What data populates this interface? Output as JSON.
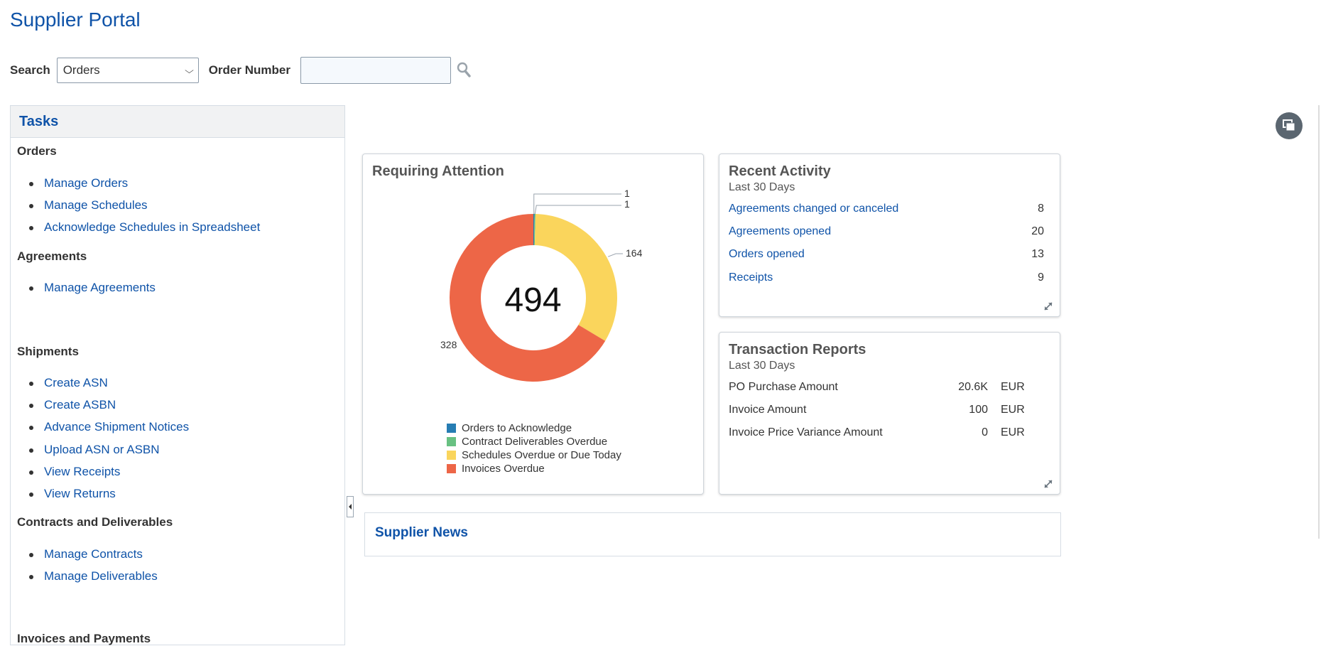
{
  "page": {
    "title": "Supplier Portal"
  },
  "search": {
    "label": "Search",
    "selected": "Orders",
    "order_label": "Order Number",
    "order_value": "",
    "order_placeholder": ""
  },
  "tasks": {
    "title": "Tasks",
    "sections": {
      "orders": {
        "title": "Orders",
        "items": [
          "Manage Orders",
          "Manage Schedules",
          "Acknowledge Schedules in Spreadsheet"
        ]
      },
      "agreements": {
        "title": "Agreements",
        "items": [
          "Manage Agreements"
        ]
      },
      "shipments": {
        "title": "Shipments",
        "items": [
          "Create ASN",
          "Create ASBN",
          "Advance Shipment Notices",
          "Upload ASN or ASBN",
          "View Receipts",
          "View Returns"
        ]
      },
      "contracts": {
        "title": "Contracts and Deliverables",
        "items": [
          "Manage Contracts",
          "Manage Deliverables"
        ]
      },
      "invoices": {
        "title": "Invoices and Payments"
      }
    }
  },
  "requiring_attention": {
    "title": "Requiring Attention",
    "total": "494"
  },
  "chart_data": {
    "type": "pie",
    "title": "Requiring Attention",
    "center_label": "494",
    "categories": [
      "Orders to Acknowledge",
      "Contract Deliverables Overdue",
      "Schedules Overdue or Due Today",
      "Invoices Overdue"
    ],
    "values": [
      1,
      1,
      164,
      328
    ],
    "colors": [
      "#267db3",
      "#68c182",
      "#fad55c",
      "#ed6647"
    ],
    "legend": "bottom"
  },
  "recent_activity": {
    "title": "Recent Activity",
    "subtitle": "Last 30 Days",
    "rows": [
      {
        "label": "Agreements changed or canceled",
        "value": "8"
      },
      {
        "label": "Agreements opened",
        "value": "20"
      },
      {
        "label": "Orders opened",
        "value": "13"
      },
      {
        "label": "Receipts",
        "value": "9"
      }
    ]
  },
  "transaction_reports": {
    "title": "Transaction Reports",
    "subtitle": "Last 30 Days",
    "rows": [
      {
        "label": "PO Purchase Amount",
        "amount": "20.6K",
        "currency": "EUR"
      },
      {
        "label": "Invoice Amount",
        "amount": "100",
        "currency": "EUR"
      },
      {
        "label": "Invoice Price Variance Amount",
        "amount": "0",
        "currency": "EUR"
      }
    ]
  },
  "supplier_news": {
    "title": "Supplier News"
  },
  "icons": {
    "search_button": "magnifier-icon",
    "utility": "stacked-windows-icon",
    "expand": "expand-arrows-icon",
    "collapse": "collapse-left-icon"
  }
}
